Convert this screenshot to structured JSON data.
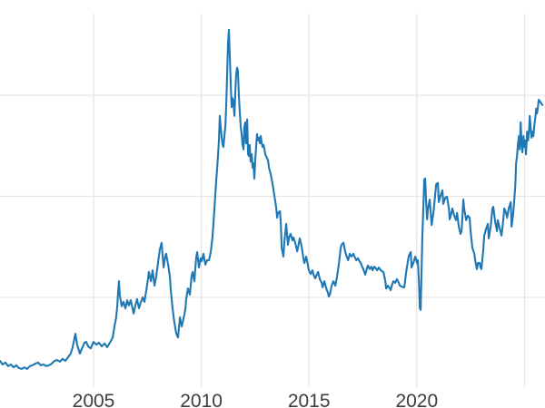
{
  "chart_data": {
    "type": "line",
    "title": "",
    "xlabel": "",
    "ylabel": "",
    "legend": null,
    "grid": true,
    "line_color": "#1f77b4",
    "grid_color": "#e5e5e5",
    "tick_label_color": "#3d3d3d",
    "background_color": "#ffffff",
    "xlim": [
      2000.66,
      2025.95
    ],
    "ylim": [
      2.8,
      95.2
    ],
    "y_axis_note": "y-axis tick labels are cropped out of view; values are in arbitrary units anchored to the three unlabeled horizontal gridlines at 25, 50 and 75",
    "x_ticks": [
      {
        "year": 2005,
        "label": "2005"
      },
      {
        "year": 2010,
        "label": "2010"
      },
      {
        "year": 2015,
        "label": "2015"
      },
      {
        "year": 2020,
        "label": "2020"
      },
      {
        "year": 2025,
        "label": ""
      }
    ],
    "y_gridline_values": [
      25,
      50,
      75
    ],
    "points": [
      [
        2000.66,
        9.3
      ],
      [
        2000.78,
        8.4
      ],
      [
        2000.91,
        8.9
      ],
      [
        2001.04,
        8.0
      ],
      [
        2001.16,
        8.4
      ],
      [
        2001.29,
        7.7
      ],
      [
        2001.41,
        8.2
      ],
      [
        2001.54,
        7.5
      ],
      [
        2001.67,
        7.3
      ],
      [
        2001.79,
        7.7
      ],
      [
        2001.92,
        7.3
      ],
      [
        2002.05,
        8.0
      ],
      [
        2002.17,
        8.2
      ],
      [
        2002.3,
        8.6
      ],
      [
        2002.43,
        8.9
      ],
      [
        2002.55,
        8.2
      ],
      [
        2002.68,
        8.4
      ],
      [
        2002.81,
        8.0
      ],
      [
        2002.93,
        8.2
      ],
      [
        2003.06,
        8.6
      ],
      [
        2003.19,
        9.3
      ],
      [
        2003.31,
        9.5
      ],
      [
        2003.44,
        9.1
      ],
      [
        2003.56,
        9.8
      ],
      [
        2003.69,
        9.3
      ],
      [
        2003.82,
        10.2
      ],
      [
        2003.94,
        11.1
      ],
      [
        2004.03,
        12.7
      ],
      [
        2004.16,
        16.0
      ],
      [
        2004.24,
        13.3
      ],
      [
        2004.37,
        11.1
      ],
      [
        2004.45,
        12.2
      ],
      [
        2004.58,
        13.8
      ],
      [
        2004.66,
        14.0
      ],
      [
        2004.75,
        12.9
      ],
      [
        2004.87,
        12.4
      ],
      [
        2005.0,
        14.0
      ],
      [
        2005.13,
        13.3
      ],
      [
        2005.25,
        13.8
      ],
      [
        2005.38,
        12.9
      ],
      [
        2005.51,
        13.6
      ],
      [
        2005.63,
        12.7
      ],
      [
        2005.76,
        13.8
      ],
      [
        2005.89,
        15.1
      ],
      [
        2005.97,
        17.8
      ],
      [
        2006.05,
        20.1
      ],
      [
        2006.1,
        22.8
      ],
      [
        2006.14,
        26.4
      ],
      [
        2006.18,
        29.0
      ],
      [
        2006.22,
        25.5
      ],
      [
        2006.31,
        22.8
      ],
      [
        2006.39,
        23.9
      ],
      [
        2006.48,
        22.3
      ],
      [
        2006.56,
        24.3
      ],
      [
        2006.64,
        23.0
      ],
      [
        2006.73,
        24.3
      ],
      [
        2006.81,
        22.3
      ],
      [
        2006.86,
        21.0
      ],
      [
        2006.94,
        23.0
      ],
      [
        2007.02,
        24.6
      ],
      [
        2007.11,
        22.3
      ],
      [
        2007.19,
        23.7
      ],
      [
        2007.28,
        25.0
      ],
      [
        2007.36,
        23.9
      ],
      [
        2007.45,
        26.8
      ],
      [
        2007.53,
        29.7
      ],
      [
        2007.57,
        31.3
      ],
      [
        2007.66,
        29.0
      ],
      [
        2007.74,
        31.7
      ],
      [
        2007.83,
        27.9
      ],
      [
        2007.91,
        30.2
      ],
      [
        2007.99,
        33.5
      ],
      [
        2008.08,
        36.9
      ],
      [
        2008.16,
        38.5
      ],
      [
        2008.25,
        32.4
      ],
      [
        2008.33,
        35.3
      ],
      [
        2008.37,
        35.8
      ],
      [
        2008.46,
        33.1
      ],
      [
        2008.54,
        30.2
      ],
      [
        2008.58,
        27.2
      ],
      [
        2008.67,
        22.3
      ],
      [
        2008.75,
        18.9
      ],
      [
        2008.84,
        16.0
      ],
      [
        2008.92,
        15.1
      ],
      [
        2009.01,
        20.1
      ],
      [
        2009.09,
        17.8
      ],
      [
        2009.17,
        19.6
      ],
      [
        2009.26,
        21.9
      ],
      [
        2009.3,
        24.6
      ],
      [
        2009.38,
        27.2
      ],
      [
        2009.47,
        25.7
      ],
      [
        2009.55,
        30.2
      ],
      [
        2009.6,
        31.3
      ],
      [
        2009.68,
        29.0
      ],
      [
        2009.76,
        34.7
      ],
      [
        2009.81,
        36.2
      ],
      [
        2009.89,
        32.4
      ],
      [
        2009.97,
        34.7
      ],
      [
        2010.02,
        34.0
      ],
      [
        2010.1,
        35.8
      ],
      [
        2010.19,
        33.1
      ],
      [
        2010.27,
        34.2
      ],
      [
        2010.36,
        34.2
      ],
      [
        2010.44,
        36.2
      ],
      [
        2010.52,
        39.8
      ],
      [
        2010.57,
        43.6
      ],
      [
        2010.61,
        47.0
      ],
      [
        2010.65,
        50.3
      ],
      [
        2010.69,
        53.7
      ],
      [
        2010.74,
        57.1
      ],
      [
        2010.78,
        60.4
      ],
      [
        2010.82,
        63.8
      ],
      [
        2010.86,
        69.9
      ],
      [
        2010.9,
        67.2
      ],
      [
        2010.95,
        64.5
      ],
      [
        2010.99,
        62.7
      ],
      [
        2011.03,
        62.2
      ],
      [
        2011.07,
        64.9
      ],
      [
        2011.12,
        67.6
      ],
      [
        2011.16,
        72.8
      ],
      [
        2011.2,
        80.6
      ],
      [
        2011.24,
        87.8
      ],
      [
        2011.28,
        91.2
      ],
      [
        2011.33,
        84.0
      ],
      [
        2011.37,
        77.3
      ],
      [
        2011.41,
        72.1
      ],
      [
        2011.45,
        74.3
      ],
      [
        2011.49,
        73.4
      ],
      [
        2011.54,
        69.9
      ],
      [
        2011.58,
        76.1
      ],
      [
        2011.62,
        80.2
      ],
      [
        2011.66,
        81.8
      ],
      [
        2011.7,
        81.1
      ],
      [
        2011.75,
        74.3
      ],
      [
        2011.79,
        70.5
      ],
      [
        2011.83,
        67.2
      ],
      [
        2011.87,
        65.4
      ],
      [
        2011.92,
        62.7
      ],
      [
        2011.96,
        61.6
      ],
      [
        2012.0,
        67.2
      ],
      [
        2012.04,
        68.3
      ],
      [
        2012.08,
        63.1
      ],
      [
        2012.13,
        69.0
      ],
      [
        2012.17,
        60.4
      ],
      [
        2012.21,
        60.0
      ],
      [
        2012.25,
        62.7
      ],
      [
        2012.29,
        58.6
      ],
      [
        2012.34,
        60.4
      ],
      [
        2012.38,
        57.1
      ],
      [
        2012.42,
        58.2
      ],
      [
        2012.46,
        54.4
      ],
      [
        2012.51,
        59.3
      ],
      [
        2012.55,
        62.7
      ],
      [
        2012.59,
        65.4
      ],
      [
        2012.63,
        63.8
      ],
      [
        2012.68,
        64.5
      ],
      [
        2012.72,
        63.1
      ],
      [
        2012.76,
        64.9
      ],
      [
        2012.8,
        63.4
      ],
      [
        2012.84,
        62.2
      ],
      [
        2012.89,
        62.7
      ],
      [
        2012.97,
        60.4
      ],
      [
        2013.06,
        59.3
      ],
      [
        2013.1,
        58.9
      ],
      [
        2013.14,
        57.1
      ],
      [
        2013.22,
        55.5
      ],
      [
        2013.31,
        53.0
      ],
      [
        2013.39,
        50.3
      ],
      [
        2013.48,
        47.0
      ],
      [
        2013.52,
        44.7
      ],
      [
        2013.56,
        45.9
      ],
      [
        2013.65,
        46.3
      ],
      [
        2013.69,
        43.6
      ],
      [
        2013.73,
        37.3
      ],
      [
        2013.81,
        35.1
      ],
      [
        2013.86,
        39.1
      ],
      [
        2013.94,
        43.2
      ],
      [
        2013.98,
        40.7
      ],
      [
        2014.02,
        38.0
      ],
      [
        2014.07,
        39.8
      ],
      [
        2014.15,
        40.7
      ],
      [
        2014.23,
        39.1
      ],
      [
        2014.28,
        39.8
      ],
      [
        2014.36,
        38.5
      ],
      [
        2014.45,
        36.4
      ],
      [
        2014.53,
        38.5
      ],
      [
        2014.57,
        39.6
      ],
      [
        2014.66,
        37.6
      ],
      [
        2014.74,
        34.7
      ],
      [
        2014.78,
        33.5
      ],
      [
        2014.87,
        35.1
      ],
      [
        2014.95,
        32.9
      ],
      [
        2014.99,
        31.7
      ],
      [
        2015.08,
        30.8
      ],
      [
        2015.16,
        31.7
      ],
      [
        2015.21,
        30.6
      ],
      [
        2015.29,
        29.7
      ],
      [
        2015.37,
        30.8
      ],
      [
        2015.42,
        31.3
      ],
      [
        2015.5,
        29.5
      ],
      [
        2015.59,
        28.6
      ],
      [
        2015.63,
        27.5
      ],
      [
        2015.71,
        29.0
      ],
      [
        2015.8,
        27.2
      ],
      [
        2015.88,
        26.1
      ],
      [
        2015.92,
        25.2
      ],
      [
        2015.97,
        25.7
      ],
      [
        2016.05,
        27.9
      ],
      [
        2016.13,
        29.0
      ],
      [
        2016.22,
        27.9
      ],
      [
        2016.3,
        30.2
      ],
      [
        2016.39,
        33.5
      ],
      [
        2016.47,
        37.3
      ],
      [
        2016.51,
        38.0
      ],
      [
        2016.6,
        38.5
      ],
      [
        2016.68,
        36.2
      ],
      [
        2016.76,
        34.9
      ],
      [
        2016.81,
        34.2
      ],
      [
        2016.89,
        35.8
      ],
      [
        2016.97,
        35.1
      ],
      [
        2017.06,
        35.8
      ],
      [
        2017.1,
        35.3
      ],
      [
        2017.19,
        34.2
      ],
      [
        2017.27,
        34.7
      ],
      [
        2017.31,
        34.2
      ],
      [
        2017.4,
        33.5
      ],
      [
        2017.44,
        32.9
      ],
      [
        2017.52,
        32.0
      ],
      [
        2017.61,
        30.6
      ],
      [
        2017.69,
        32.2
      ],
      [
        2017.73,
        32.9
      ],
      [
        2017.82,
        32.0
      ],
      [
        2017.9,
        32.6
      ],
      [
        2017.95,
        31.7
      ],
      [
        2018.03,
        32.6
      ],
      [
        2018.07,
        32.4
      ],
      [
        2018.16,
        31.7
      ],
      [
        2018.24,
        32.4
      ],
      [
        2018.28,
        32.0
      ],
      [
        2018.37,
        31.5
      ],
      [
        2018.45,
        31.3
      ],
      [
        2018.54,
        29.0
      ],
      [
        2018.58,
        27.2
      ],
      [
        2018.66,
        27.9
      ],
      [
        2018.75,
        27.2
      ],
      [
        2018.79,
        26.8
      ],
      [
        2018.87,
        28.4
      ],
      [
        2018.92,
        29.0
      ],
      [
        2019.0,
        28.6
      ],
      [
        2019.08,
        29.5
      ],
      [
        2019.17,
        28.6
      ],
      [
        2019.21,
        27.9
      ],
      [
        2019.3,
        27.7
      ],
      [
        2019.38,
        27.5
      ],
      [
        2019.42,
        27.5
      ],
      [
        2019.51,
        31.3
      ],
      [
        2019.59,
        34.0
      ],
      [
        2019.63,
        35.3
      ],
      [
        2019.72,
        36.2
      ],
      [
        2019.76,
        32.4
      ],
      [
        2019.84,
        33.5
      ],
      [
        2019.93,
        35.1
      ],
      [
        2020.01,
        33.5
      ],
      [
        2020.05,
        34.2
      ],
      [
        2020.1,
        29.0
      ],
      [
        2020.14,
        22.3
      ],
      [
        2020.18,
        21.9
      ],
      [
        2020.22,
        31.3
      ],
      [
        2020.26,
        40.3
      ],
      [
        2020.31,
        48.1
      ],
      [
        2020.35,
        54.2
      ],
      [
        2020.39,
        54.4
      ],
      [
        2020.43,
        49.2
      ],
      [
        2020.48,
        44.3
      ],
      [
        2020.52,
        47.0
      ],
      [
        2020.6,
        49.2
      ],
      [
        2020.69,
        42.9
      ],
      [
        2020.77,
        45.9
      ],
      [
        2020.81,
        48.1
      ],
      [
        2020.9,
        53.0
      ],
      [
        2020.98,
        53.3
      ],
      [
        2021.02,
        48.6
      ],
      [
        2021.11,
        50.3
      ],
      [
        2021.19,
        51.5
      ],
      [
        2021.23,
        48.1
      ],
      [
        2021.32,
        49.7
      ],
      [
        2021.4,
        49.9
      ],
      [
        2021.49,
        47.0
      ],
      [
        2021.53,
        44.3
      ],
      [
        2021.61,
        45.9
      ],
      [
        2021.65,
        47.0
      ],
      [
        2021.74,
        45.2
      ],
      [
        2021.82,
        44.1
      ],
      [
        2021.87,
        45.9
      ],
      [
        2021.95,
        42.5
      ],
      [
        2022.03,
        40.7
      ],
      [
        2022.08,
        41.4
      ],
      [
        2022.16,
        49.2
      ],
      [
        2022.2,
        47.0
      ],
      [
        2022.29,
        44.1
      ],
      [
        2022.37,
        45.2
      ],
      [
        2022.45,
        44.7
      ],
      [
        2022.5,
        41.4
      ],
      [
        2022.58,
        37.3
      ],
      [
        2022.67,
        35.8
      ],
      [
        2022.71,
        34.2
      ],
      [
        2022.79,
        32.0
      ],
      [
        2022.84,
        33.5
      ],
      [
        2022.92,
        33.5
      ],
      [
        2022.96,
        32.4
      ],
      [
        2023.0,
        32.0
      ],
      [
        2023.09,
        36.9
      ],
      [
        2023.13,
        40.3
      ],
      [
        2023.22,
        42.0
      ],
      [
        2023.3,
        43.2
      ],
      [
        2023.34,
        39.6
      ],
      [
        2023.43,
        42.5
      ],
      [
        2023.51,
        47.0
      ],
      [
        2023.55,
        47.4
      ],
      [
        2023.64,
        43.6
      ],
      [
        2023.72,
        41.4
      ],
      [
        2023.76,
        44.1
      ],
      [
        2023.85,
        42.0
      ],
      [
        2023.93,
        40.3
      ],
      [
        2023.98,
        42.5
      ],
      [
        2024.06,
        47.0
      ],
      [
        2024.14,
        45.9
      ],
      [
        2024.19,
        44.7
      ],
      [
        2024.27,
        47.0
      ],
      [
        2024.36,
        48.6
      ],
      [
        2024.4,
        42.5
      ],
      [
        2024.48,
        45.9
      ],
      [
        2024.57,
        52.6
      ],
      [
        2024.61,
        58.2
      ],
      [
        2024.65,
        60.0
      ],
      [
        2024.69,
        62.7
      ],
      [
        2024.74,
        64.9
      ],
      [
        2024.78,
        61.6
      ],
      [
        2024.82,
        68.3
      ],
      [
        2024.86,
        63.8
      ],
      [
        2024.9,
        60.9
      ],
      [
        2024.95,
        64.9
      ],
      [
        2024.99,
        62.2
      ],
      [
        2025.03,
        63.8
      ],
      [
        2025.07,
        60.4
      ],
      [
        2025.12,
        66.0
      ],
      [
        2025.16,
        63.8
      ],
      [
        2025.2,
        65.4
      ],
      [
        2025.24,
        69.9
      ],
      [
        2025.28,
        67.2
      ],
      [
        2025.33,
        64.5
      ],
      [
        2025.37,
        66.0
      ],
      [
        2025.41,
        64.9
      ],
      [
        2025.45,
        67.2
      ],
      [
        2025.5,
        69.4
      ],
      [
        2025.54,
        71.7
      ],
      [
        2025.58,
        70.5
      ],
      [
        2025.62,
        72.1
      ],
      [
        2025.66,
        73.9
      ],
      [
        2025.75,
        73.2
      ],
      [
        2025.83,
        72.6
      ]
    ]
  }
}
